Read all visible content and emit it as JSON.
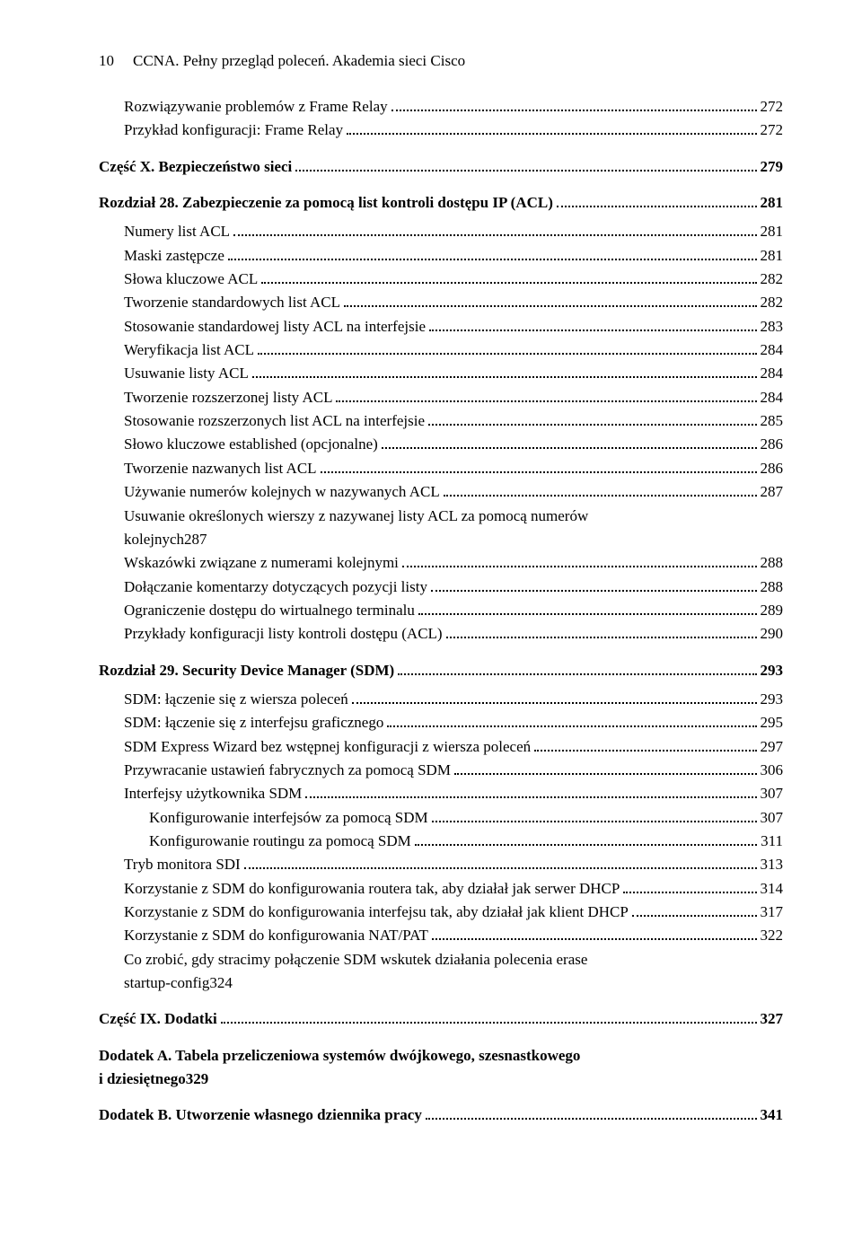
{
  "header": {
    "page_number": "10",
    "running_title": "CCNA. Pełny przegląd poleceń. Akademia sieci Cisco"
  },
  "blocks": [
    {
      "type": "group",
      "items": [
        {
          "label": "Rozwiązywanie problemów z Frame Relay",
          "page": "272",
          "level": 1
        },
        {
          "label": "Przykład konfiguracji: Frame Relay",
          "page": "272",
          "level": 1
        }
      ]
    },
    {
      "type": "chapter",
      "label": "Część X. Bezpieczeństwo sieci",
      "page": "279",
      "level": 0,
      "bold": true
    },
    {
      "type": "chapter",
      "label": "Rozdział 28. Zabezpieczenie za pomocą list kontroli dostępu IP (ACL)",
      "page": "281",
      "level": 0,
      "bold": true,
      "items": [
        {
          "label": "Numery list ACL",
          "page": "281",
          "level": 1
        },
        {
          "label": "Maski zastępcze",
          "page": "281",
          "level": 1
        },
        {
          "label": "Słowa kluczowe ACL",
          "page": "282",
          "level": 1
        },
        {
          "label": "Tworzenie standardowych list ACL",
          "page": "282",
          "level": 1
        },
        {
          "label": "Stosowanie standardowej listy ACL na interfejsie",
          "page": "283",
          "level": 1
        },
        {
          "label": "Weryfikacja list ACL",
          "page": "284",
          "level": 1
        },
        {
          "label": "Usuwanie listy ACL",
          "page": "284",
          "level": 1
        },
        {
          "label": "Tworzenie rozszerzonej listy ACL",
          "page": "284",
          "level": 1
        },
        {
          "label": "Stosowanie rozszerzonych list ACL na interfejsie",
          "page": "285",
          "level": 1
        },
        {
          "label": "Słowo kluczowe established (opcjonalne)",
          "page": "286",
          "level": 1
        },
        {
          "label": "Tworzenie nazwanych list ACL",
          "page": "286",
          "level": 1
        },
        {
          "label": "Używanie numerów kolejnych w nazywanych ACL",
          "page": "287",
          "level": 1
        },
        {
          "label_pre": "Usuwanie określonych wierszy z nazywanej listy ACL za pomocą numerów",
          "label": "kolejnych",
          "page": "287",
          "level": 1,
          "multiline": true
        },
        {
          "label": "Wskazówki związane z numerami kolejnymi",
          "page": "288",
          "level": 1
        },
        {
          "label": "Dołączanie komentarzy dotyczących pozycji listy",
          "page": "288",
          "level": 1
        },
        {
          "label": "Ograniczenie dostępu do wirtualnego terminalu",
          "page": "289",
          "level": 1
        },
        {
          "label": "Przykłady konfiguracji listy kontroli dostępu (ACL)",
          "page": "290",
          "level": 1
        }
      ]
    },
    {
      "type": "chapter",
      "label": "Rozdział 29. Security Device Manager (SDM)",
      "page": "293",
      "level": 0,
      "bold": true,
      "items": [
        {
          "label": "SDM: łączenie się z wiersza poleceń",
          "page": "293",
          "level": 1
        },
        {
          "label": "SDM: łączenie się z interfejsu graficznego",
          "page": "295",
          "level": 1
        },
        {
          "label": "SDM Express Wizard bez wstępnej konfiguracji z wiersza poleceń",
          "page": "297",
          "level": 1
        },
        {
          "label": "Przywracanie ustawień fabrycznych za pomocą SDM",
          "page": "306",
          "level": 1
        },
        {
          "label": "Interfejsy użytkownika SDM",
          "page": "307",
          "level": 1
        },
        {
          "label": "Konfigurowanie interfejsów za pomocą SDM",
          "page": "307",
          "level": 2
        },
        {
          "label": "Konfigurowanie routingu za pomocą SDM",
          "page": "311",
          "level": 2
        },
        {
          "label": "Tryb monitora SDI",
          "page": "313",
          "level": 1
        },
        {
          "label": "Korzystanie z SDM do konfigurowania routera tak, aby działał jak serwer DHCP",
          "page": "314",
          "level": 1
        },
        {
          "label": "Korzystanie z SDM do konfigurowania interfejsu tak, aby działał jak klient DHCP",
          "page": "317",
          "level": 1
        },
        {
          "label": "Korzystanie z SDM do konfigurowania NAT/PAT",
          "page": "322",
          "level": 1
        },
        {
          "label_pre": "Co zrobić, gdy stracimy połączenie SDM wskutek działania polecenia erase",
          "label": "startup-config",
          "page": "324",
          "level": 1,
          "multiline": true
        }
      ]
    },
    {
      "type": "chapter",
      "label": "Część IX. Dodatki",
      "page": "327",
      "level": 0,
      "bold": true
    },
    {
      "type": "chapter",
      "multiline": true,
      "label_pre": "Dodatek A. Tabela przeliczeniowa systemów dwójkowego, szesnastkowego",
      "label": "i dziesiętnego",
      "page": "329",
      "level": 0,
      "bold": true
    },
    {
      "type": "chapter",
      "label": "Dodatek B. Utworzenie własnego dziennika pracy",
      "page": "341",
      "level": 0,
      "bold": true
    }
  ]
}
